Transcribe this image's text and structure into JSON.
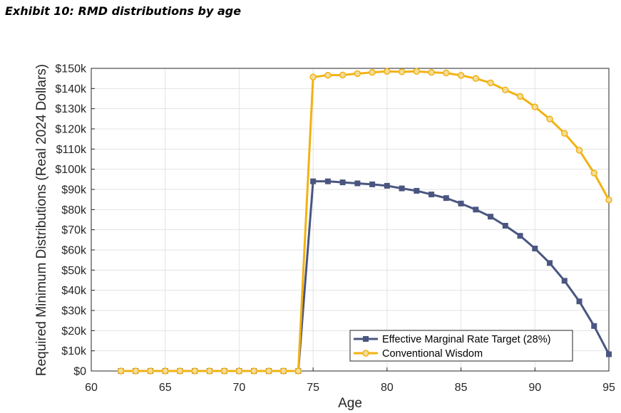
{
  "title": "Exhibit 10: RMD distributions by age",
  "chart_data": {
    "type": "line",
    "title": "",
    "xlabel": "Age",
    "ylabel": "Required Minimum Distributions (Real 2024 Dollars)",
    "xlim": [
      60,
      95
    ],
    "ylim": [
      0,
      150000
    ],
    "x_ticks": [
      60,
      65,
      70,
      75,
      80,
      85,
      90,
      95
    ],
    "x_tick_labels": [
      "60",
      "65",
      "70",
      "75",
      "80",
      "85",
      "90",
      "95"
    ],
    "y_ticks": [
      0,
      10000,
      20000,
      30000,
      40000,
      50000,
      60000,
      70000,
      80000,
      90000,
      100000,
      110000,
      120000,
      130000,
      140000,
      150000
    ],
    "y_tick_labels": [
      "$0",
      "$10k",
      "$20k",
      "$30k",
      "$40k",
      "$50k",
      "$60k",
      "$70k",
      "$80k",
      "$90k",
      "$100k",
      "$110k",
      "$120k",
      "$130k",
      "$140k",
      "$150k"
    ],
    "grid": true,
    "legend_position": "bottom-right",
    "x": [
      62,
      63,
      64,
      65,
      66,
      67,
      68,
      69,
      70,
      71,
      72,
      73,
      74,
      75,
      76,
      77,
      78,
      79,
      80,
      81,
      82,
      83,
      84,
      85,
      86,
      87,
      88,
      89,
      90,
      91,
      92,
      93,
      94,
      95
    ],
    "series": [
      {
        "name": "Effective Marginal Rate Target (28%)",
        "color": "#4a5680",
        "marker": "square",
        "values": [
          0,
          0,
          0,
          0,
          0,
          0,
          0,
          0,
          0,
          0,
          0,
          0,
          0,
          94000,
          94000,
          93500,
          93000,
          92500,
          91800,
          90500,
          89300,
          87500,
          85700,
          83000,
          80000,
          76500,
          72000,
          67000,
          60700,
          53500,
          44700,
          34500,
          22300,
          8300
        ]
      },
      {
        "name": "Conventional Wisdom",
        "color": "#f2b213",
        "marker": "circle",
        "values": [
          0,
          0,
          0,
          0,
          0,
          0,
          0,
          0,
          0,
          0,
          0,
          0,
          0,
          145700,
          146600,
          146700,
          147400,
          148000,
          148500,
          148300,
          148500,
          148000,
          147700,
          146500,
          145000,
          142800,
          139300,
          136100,
          130900,
          124900,
          117800,
          109400,
          98100,
          84800
        ]
      }
    ]
  }
}
